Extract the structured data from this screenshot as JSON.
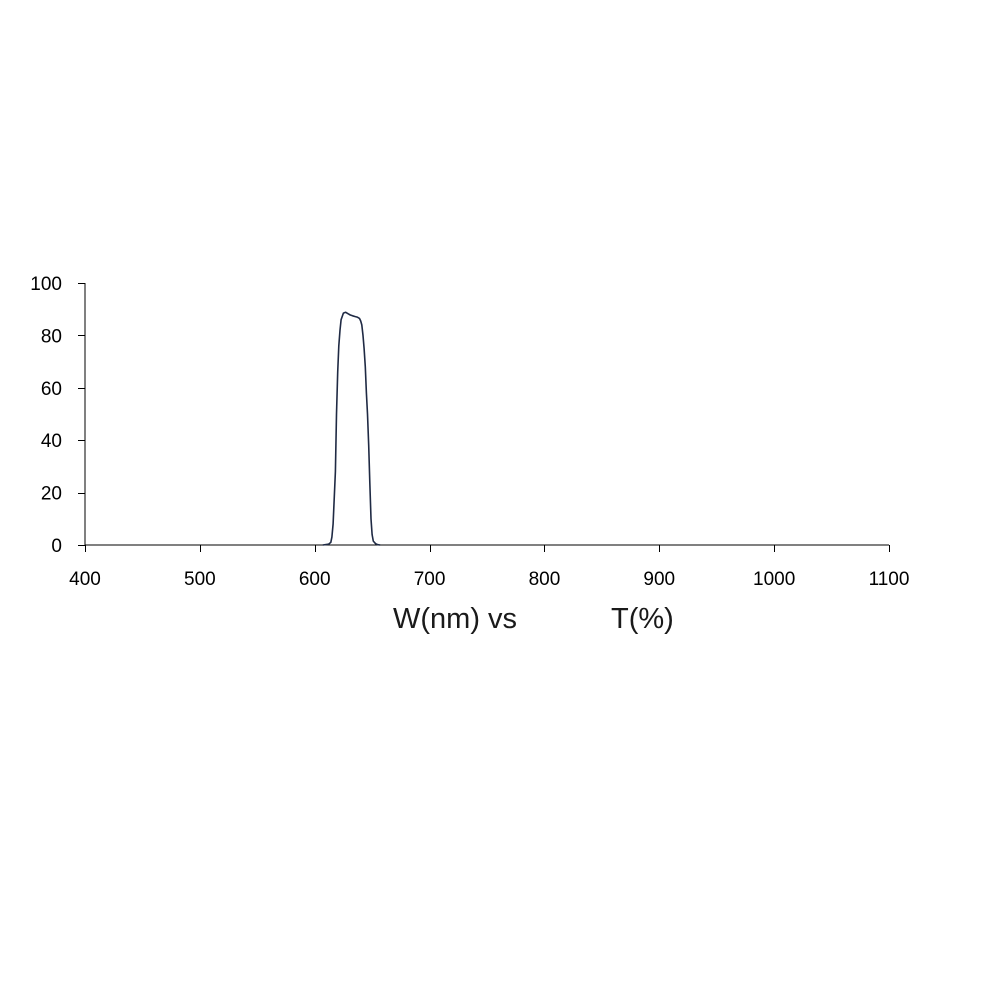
{
  "chart_data": {
    "type": "line",
    "title": "",
    "xlabel_part1": "W(nm) vs",
    "xlabel_part2": "T(%)",
    "ylabel": "",
    "xlim": [
      400,
      1100
    ],
    "ylim": [
      0,
      100
    ],
    "x_ticks": [
      400,
      500,
      600,
      700,
      800,
      900,
      1000,
      1100
    ],
    "y_ticks": [
      0,
      20,
      40,
      60,
      80,
      100
    ],
    "grid": false,
    "legend": "none",
    "line_color": "#1f2a44",
    "series": [
      {
        "x": [
          607,
          612,
          614,
          615,
          616,
          618,
          619,
          620,
          621,
          622,
          623,
          625,
          627,
          629,
          631,
          633,
          635,
          637,
          639,
          640,
          641,
          642,
          643,
          644,
          645,
          646,
          647,
          648,
          649,
          650,
          651,
          653,
          655,
          657
        ],
        "y": [
          0,
          0.3,
          1,
          3,
          8,
          28,
          50,
          66,
          76,
          82,
          86,
          88.5,
          88.8,
          88.3,
          87.8,
          87.5,
          87.2,
          87,
          86.5,
          85.5,
          84,
          80,
          75,
          68,
          58,
          50,
          38,
          24,
          10,
          4,
          1.5,
          0.5,
          0.1,
          0
        ]
      }
    ]
  }
}
